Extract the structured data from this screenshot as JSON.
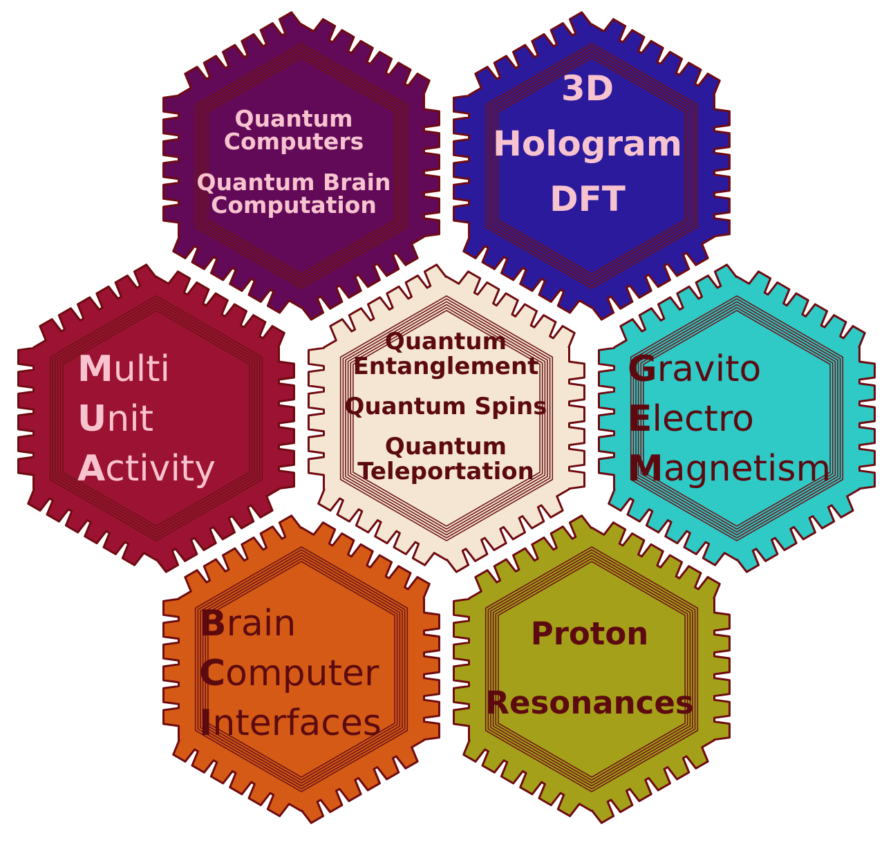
{
  "gears": [
    {
      "id": "quantum-computing",
      "fill": "#620a58",
      "text_color": "#f7c3cf",
      "blocks": [
        {
          "lines": [
            "Quantum",
            "Computers"
          ]
        },
        {
          "lines": [
            "Quantum Brain",
            "Computation"
          ]
        }
      ]
    },
    {
      "id": "hologram",
      "fill": "#2c1a9c",
      "text_color": "#f7c3cf",
      "blocks": [
        {
          "lines": [
            "3D"
          ]
        },
        {
          "lines": [
            "Hologram"
          ]
        },
        {
          "lines": [
            "DFT"
          ]
        }
      ]
    },
    {
      "id": "multi-unit-activity",
      "fill": "#9c1232",
      "text_color": "#f7c3cf",
      "acronym": [
        {
          "initial": "M",
          "rest": "ulti"
        },
        {
          "initial": "U",
          "rest": "nit"
        },
        {
          "initial": "A",
          "rest": "ctivity"
        }
      ]
    },
    {
      "id": "quantum-core",
      "fill": "#f4e6d2",
      "text_color": "#5c0a10",
      "blocks": [
        {
          "lines": [
            "Quantum",
            "Entanglement"
          ]
        },
        {
          "lines": [
            "Quantum Spins"
          ]
        },
        {
          "lines": [
            "Quantum",
            "Teleportation"
          ]
        }
      ]
    },
    {
      "id": "gravito-electro-magnetism",
      "fill": "#2fc9c6",
      "text_color": "#5c0a10",
      "acronym": [
        {
          "initial": "G",
          "rest": "ravito"
        },
        {
          "initial": "E",
          "rest": "lectro"
        },
        {
          "initial": "M",
          "rest": "agnetism"
        }
      ]
    },
    {
      "id": "brain-computer-interfaces",
      "fill": "#d45a16",
      "text_color": "#5c0a10",
      "acronym": [
        {
          "initial": "B",
          "rest": "rain"
        },
        {
          "initial": "C",
          "rest": "omputer"
        },
        {
          "initial": "I",
          "rest": "nterfaces"
        }
      ]
    },
    {
      "id": "proton-resonances",
      "fill": "#a4a01a",
      "text_color": "#5c0a10",
      "blocks": [
        {
          "lines": [
            "Proton"
          ]
        },
        {
          "lines": [
            "Resonances"
          ]
        }
      ]
    }
  ],
  "colors": {
    "outline": "#6e0a10",
    "hex_lines": "#6e1418"
  }
}
